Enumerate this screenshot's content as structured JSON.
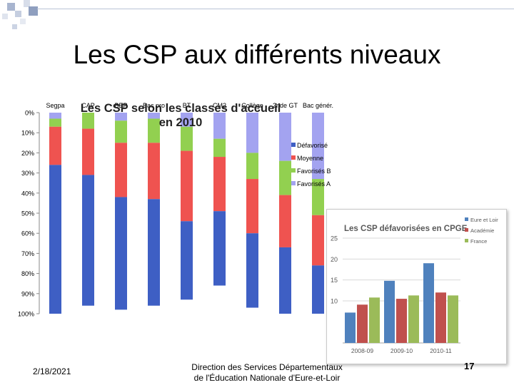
{
  "slide": {
    "title": "Les CSP aux différents niveaux",
    "date": "2/18/2021",
    "org_line1": "Direction des Services Départementaux",
    "org_line2": "de l'Éducation Nationale d'Eure-et-Loir",
    "page": "17"
  },
  "colors": {
    "favorises_a": "#a3a3f0",
    "favorises_b": "#92d050",
    "moyenne": "#ef5350",
    "defavorise": "#3e5fc4",
    "cpge_eure": "#4f81bd",
    "cpge_academie": "#c0504d",
    "cpge_france": "#9bbb59"
  },
  "chart_data": [
    {
      "type": "bar",
      "stacked": true,
      "orientation": "vertical-reversed",
      "title_line1": "Les CSP selon les classes d'accueil",
      "title_line2": "en 2010",
      "categories": [
        "Segpa",
        "CAP",
        "BEP",
        "Bac pro",
        "BT",
        "CM2",
        "Collège",
        "2nde GT",
        "Bac génér."
      ],
      "ytick_labels": [
        "0%",
        "10%",
        "20%",
        "30%",
        "40%",
        "50%",
        "60%",
        "70%",
        "80%",
        "90%",
        "100%"
      ],
      "ylim": [
        0,
        100
      ],
      "series": [
        {
          "name": "Favorisés A",
          "values": [
            3,
            0,
            4,
            3,
            7,
            13,
            20,
            24,
            33
          ]
        },
        {
          "name": "Favorisés B",
          "values": [
            4,
            8,
            11,
            12,
            12,
            9,
            13,
            17,
            18
          ]
        },
        {
          "name": "Moyenne",
          "values": [
            19,
            23,
            27,
            28,
            35,
            27,
            27,
            26,
            25
          ]
        },
        {
          "name": "Défavorisé",
          "values": [
            74,
            65,
            56,
            53,
            39,
            37,
            37,
            33,
            24
          ]
        }
      ],
      "legend": [
        "Défavorisé",
        "Moyenne",
        "Favorisés B",
        "Favorisés A"
      ],
      "legend_position": "right"
    },
    {
      "type": "bar",
      "title": "Les CSP défavorisées en CPGE",
      "categories": [
        "2008-09",
        "2009-10",
        "2010-11"
      ],
      "yticks": [
        "10",
        "15",
        "20",
        "25"
      ],
      "ylim": [
        0,
        28
      ],
      "series": [
        {
          "name": "Eure et Loir",
          "values": [
            7.2,
            14.8,
            19
          ]
        },
        {
          "name": "Académie",
          "values": [
            9.1,
            10.5,
            12
          ]
        },
        {
          "name": "France",
          "values": [
            10.8,
            11.3,
            11.3
          ]
        }
      ],
      "legend_position": "right"
    }
  ]
}
